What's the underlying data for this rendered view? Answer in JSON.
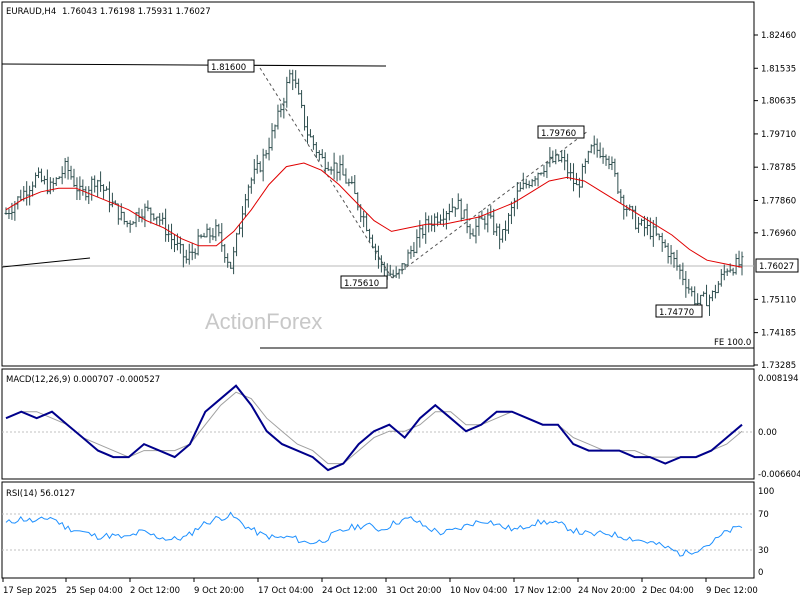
{
  "header": {
    "symbol": "EURAUD,H4",
    "ohlc": "1.76043 1.76198 1.75931 1.76027"
  },
  "watermark": "ActionForex",
  "price_axis": {
    "ticks": [
      "1.82460",
      "1.81535",
      "1.80635",
      "1.79710",
      "1.78785",
      "1.77860",
      "1.76960",
      "1.76027",
      "1.75110",
      "1.74185",
      "1.73285"
    ],
    "current": "1.76027"
  },
  "macd": {
    "label": "MACD(12,26,9) 0.000707 -0.000527",
    "ticks": [
      "0.008194",
      "0.00",
      "-0.006604"
    ]
  },
  "rsi": {
    "label": "RSI(14) 56.0127",
    "ticks": [
      "100",
      "70",
      "30",
      "0"
    ]
  },
  "time_axis": [
    "17 Sep 2025",
    "25 Sep 04:00",
    "2 Oct 12:00",
    "9 Oct 20:00",
    "17 Oct 04:00",
    "24 Oct 12:00",
    "31 Oct 20:00",
    "10 Nov 04:00",
    "17 Nov 12:00",
    "24 Nov 20:00",
    "2 Dec 04:00",
    "9 Dec 12:00"
  ],
  "annotations": {
    "top": "1.81600",
    "low1": "1.75610",
    "mid_high": "1.79760",
    "low2": "1.74770",
    "fe": "FE 100.0"
  },
  "colors": {
    "candle": "#2f4f4f",
    "ma": "#e00000",
    "macd": "#00008b",
    "signal": "#a0a0a0",
    "rsi": "#1e90ff",
    "trend": "#000000"
  },
  "chart_data": {
    "type": "line",
    "series": [
      {
        "values": [
          1.775,
          1.78,
          1.785,
          1.782,
          1.788,
          1.78,
          1.785,
          1.778,
          1.772,
          1.776,
          1.775,
          1.768,
          1.762,
          1.768,
          1.77,
          1.76,
          1.782,
          1.789,
          1.8,
          1.815,
          1.798,
          1.79,
          1.788,
          1.782,
          1.772,
          1.76,
          1.757,
          1.765,
          1.772,
          1.775,
          1.778,
          1.77,
          1.774,
          1.768,
          1.78,
          1.785,
          1.789,
          1.79,
          1.782,
          1.793,
          1.792,
          1.779,
          1.772,
          1.77,
          1.765,
          1.758,
          1.75,
          1.752,
          1.76,
          1.761
        ]
      },
      {
        "values": [
          1.776,
          1.779,
          1.781,
          1.782,
          1.782,
          1.78,
          1.778,
          1.776,
          1.773,
          1.771,
          1.768,
          1.766,
          1.766,
          1.77,
          1.776,
          1.783,
          1.788,
          1.789,
          1.787,
          1.783,
          1.778,
          1.773,
          1.77,
          1.771,
          1.772,
          1.772,
          1.773,
          1.774,
          1.776,
          1.778,
          1.781,
          1.784,
          1.785,
          1.784,
          1.781,
          1.778,
          1.775,
          1.772,
          1.769,
          1.765,
          1.762,
          1.761,
          1.76
        ]
      },
      {
        "values": [
          0.002,
          0.003,
          0.002,
          0.003,
          0.001,
          -0.001,
          -0.003,
          -0.004,
          -0.004,
          -0.002,
          -0.003,
          -0.004,
          -0.002,
          0.003,
          0.005,
          0.007,
          0.004,
          0.0,
          -0.002,
          -0.003,
          -0.004,
          -0.006,
          -0.005,
          -0.002,
          0.0,
          0.001,
          -0.001,
          0.002,
          0.004,
          0.002,
          0.0,
          0.001,
          0.003,
          0.003,
          0.002,
          0.001,
          0.001,
          -0.002,
          -0.003,
          -0.003,
          -0.003,
          -0.004,
          -0.004,
          -0.005,
          -0.004,
          -0.004,
          -0.003,
          -0.001,
          0.001
        ]
      },
      {
        "values": [
          0.002,
          0.003,
          0.003,
          0.002,
          0.001,
          -0.001,
          -0.002,
          -0.003,
          -0.004,
          -0.003,
          -0.003,
          -0.003,
          -0.002,
          0.001,
          0.004,
          0.006,
          0.005,
          0.002,
          0.0,
          -0.002,
          -0.003,
          -0.005,
          -0.005,
          -0.003,
          -0.001,
          0.0,
          0.0,
          0.001,
          0.003,
          0.003,
          0.001,
          0.001,
          0.002,
          0.003,
          0.002,
          0.001,
          0.001,
          -0.001,
          -0.002,
          -0.003,
          -0.003,
          -0.003,
          -0.004,
          -0.004,
          -0.004,
          -0.004,
          -0.003,
          -0.002,
          0.0
        ]
      },
      {
        "values": [
          60,
          66,
          62,
          68,
          55,
          50,
          44,
          45,
          42,
          50,
          44,
          40,
          43,
          58,
          66,
          70,
          56,
          46,
          42,
          43,
          36,
          38,
          48,
          55,
          58,
          52,
          62,
          66,
          55,
          48,
          52,
          60,
          64,
          56,
          52,
          60,
          62,
          58,
          50,
          46,
          48,
          44,
          40,
          36,
          30,
          22,
          28,
          36,
          50,
          56
        ]
      }
    ]
  }
}
